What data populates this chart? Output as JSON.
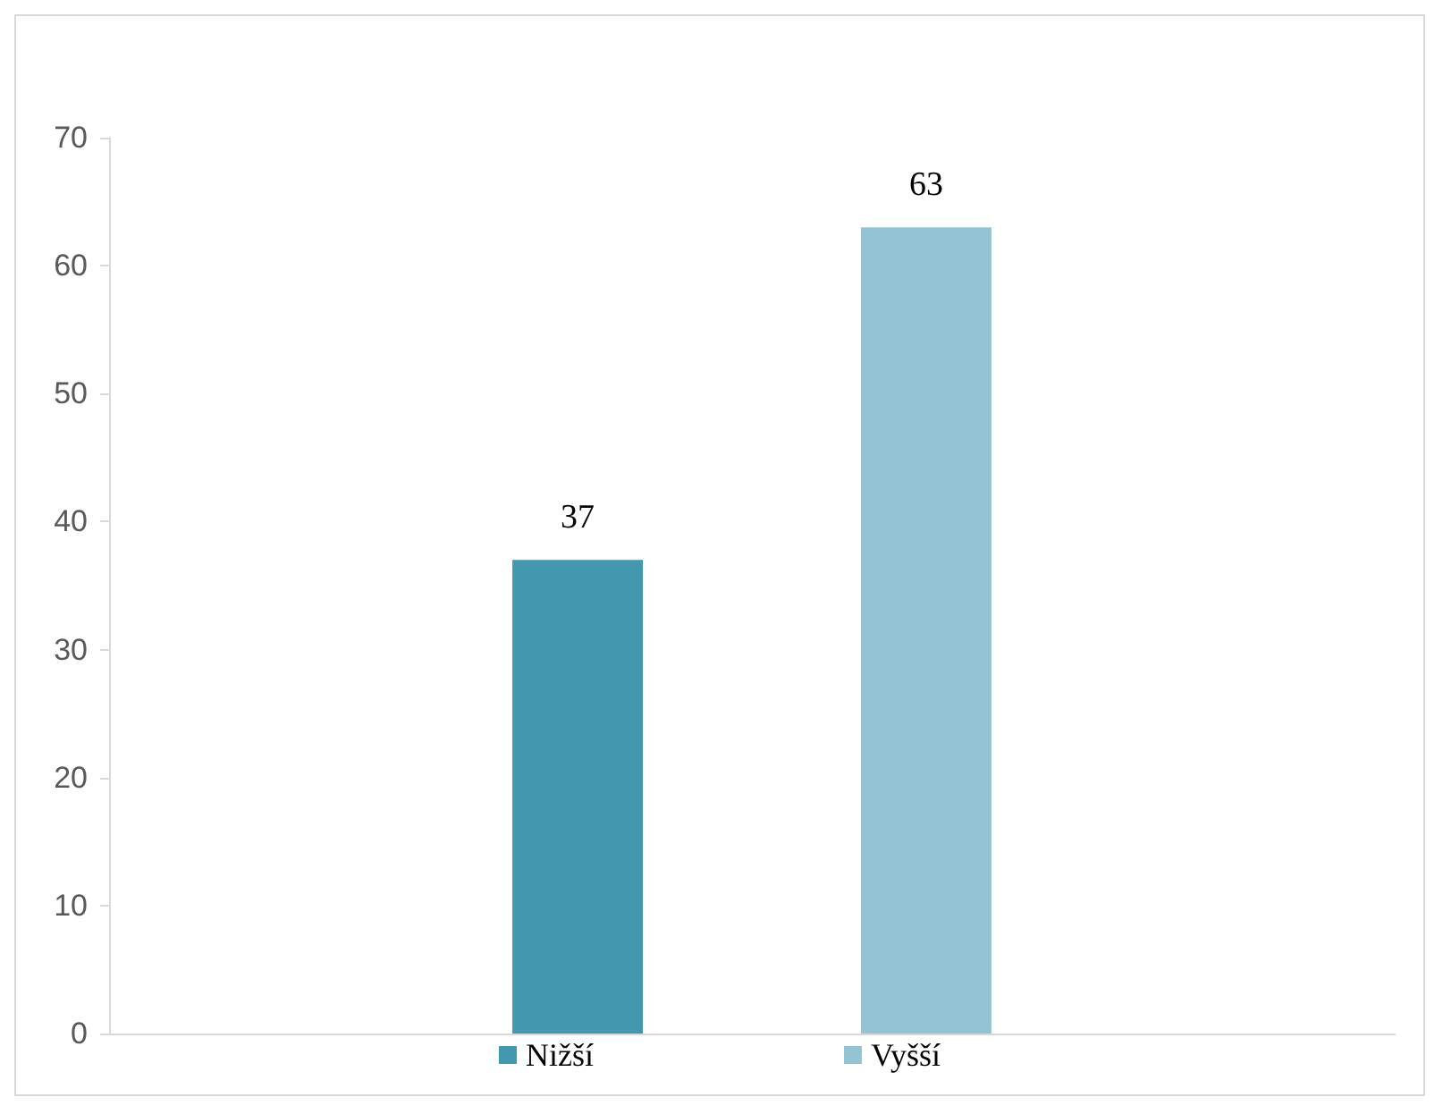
{
  "chart_data": {
    "type": "bar",
    "categories": [
      null
    ],
    "series": [
      {
        "name": "Nižší",
        "color": "#4398b0",
        "values": [
          37
        ]
      },
      {
        "name": "Vyšší",
        "color": "#94c4d4",
        "values": [
          63
        ]
      }
    ],
    "ylim": [
      0,
      70
    ],
    "yticks": [
      0,
      10,
      20,
      30,
      40,
      50,
      60,
      70
    ],
    "data_labels": true,
    "legend": "bottom",
    "grid": false
  }
}
